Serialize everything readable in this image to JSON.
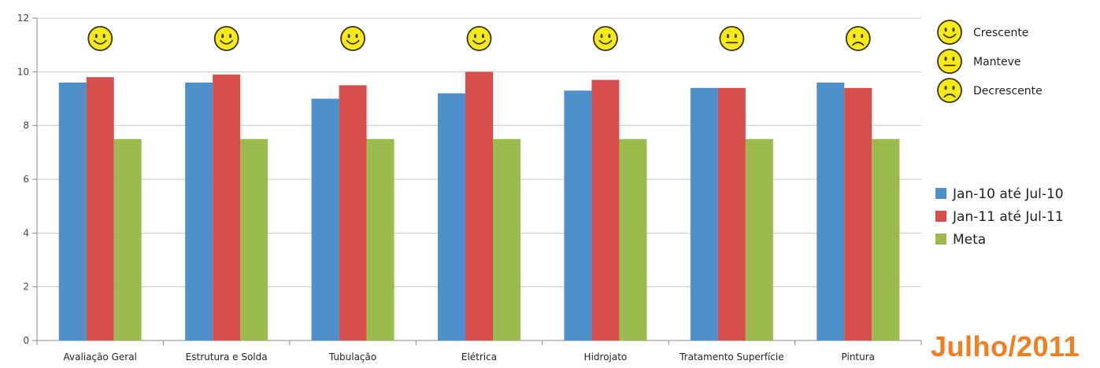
{
  "chart_data": {
    "type": "bar",
    "categories": [
      "Avaliação Geral",
      "Estrutura e Solda",
      "Tubulação",
      "Elétrica",
      "Hidrojato",
      "Tratamento Superfície",
      "Pintura"
    ],
    "series": [
      {
        "name": "Jan-10 até Jul-10",
        "color": "#4f8fcb",
        "values": [
          9.6,
          9.6,
          9.0,
          9.2,
          9.3,
          9.4,
          9.6
        ]
      },
      {
        "name": "Jan-11 até Jul-11",
        "color": "#d64f4c",
        "values": [
          9.8,
          9.9,
          9.5,
          10.0,
          9.7,
          9.4,
          9.4
        ]
      },
      {
        "name": "Meta",
        "color": "#9bbb4f",
        "values": [
          7.5,
          7.5,
          7.5,
          7.5,
          7.5,
          7.5,
          7.5
        ]
      }
    ],
    "ylim": [
      0,
      12
    ],
    "yticks": [
      0,
      2,
      4,
      6,
      8,
      10,
      12
    ],
    "grid": true,
    "legend_position": "right",
    "category_trend": [
      "crescente",
      "crescente",
      "crescente",
      "crescente",
      "crescente",
      "manteve",
      "decrescente"
    ]
  },
  "trend_key": [
    {
      "face": "happy",
      "label": "Crescente"
    },
    {
      "face": "neutral",
      "label": "Manteve"
    },
    {
      "face": "sad",
      "label": "Decrescente"
    }
  ],
  "footer_label": "Julho/2011",
  "colors": {
    "smiley_fill": "#f7ea1a",
    "smiley_stroke": "#3a3300",
    "accent": "#f07f22"
  }
}
